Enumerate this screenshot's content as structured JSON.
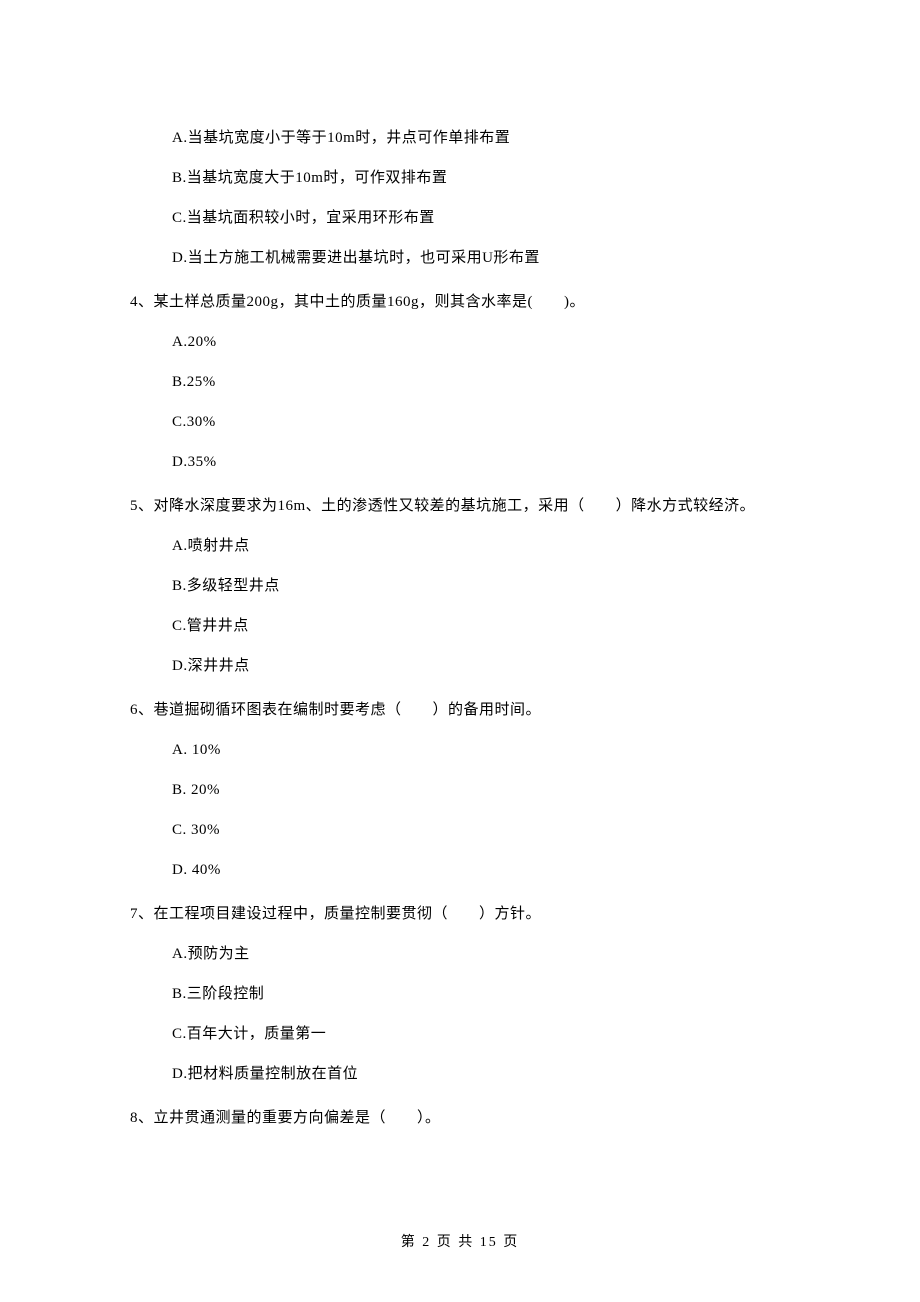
{
  "options_pre": [
    "A.当基坑宽度小于等于10m时，井点可作单排布置",
    "B.当基坑宽度大于10m时，可作双排布置",
    "C.当基坑面积较小时，宜采用环形布置",
    "D.当土方施工机械需要进出基坑时，也可采用U形布置"
  ],
  "q4": {
    "text": "4、某土样总质量200g，其中土的质量160g，则其含水率是(　　)。",
    "options": [
      "A.20%",
      "B.25%",
      "C.30%",
      "D.35%"
    ]
  },
  "q5": {
    "text": "5、对降水深度要求为16m、土的渗透性又较差的基坑施工，采用（　　）降水方式较经济。",
    "options": [
      "A.喷射井点",
      "B.多级轻型井点",
      "C.管井井点",
      "D.深井井点"
    ]
  },
  "q6": {
    "text": "6、巷道掘砌循环图表在编制时要考虑（　　）的备用时间。",
    "options": [
      "A. 10%",
      "B. 20%",
      "C. 30%",
      "D. 40%"
    ]
  },
  "q7": {
    "text": "7、在工程项目建设过程中，质量控制要贯彻（　　）方针。",
    "options": [
      "A.预防为主",
      "B.三阶段控制",
      "C.百年大计，质量第一",
      "D.把材料质量控制放在首位"
    ]
  },
  "q8": {
    "text": "8、立井贯通测量的重要方向偏差是（　　）。"
  },
  "footer": "第 2 页 共 15 页"
}
